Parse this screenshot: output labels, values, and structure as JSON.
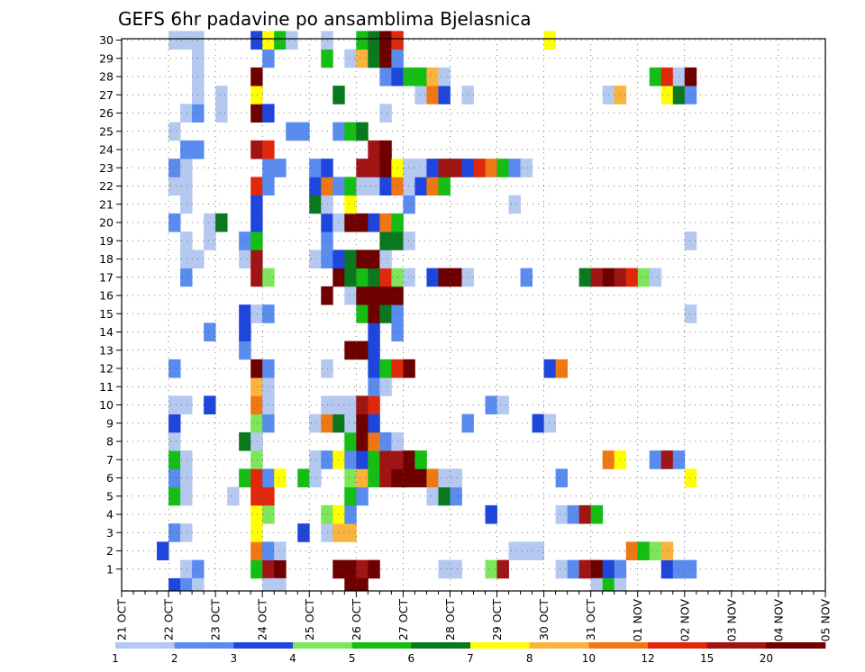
{
  "chart_data": {
    "type": "heatmap",
    "title": "GEFS 6hr padavine po ansamblima Bjelasnica",
    "xlabel": "",
    "ylabel": "",
    "y_categories": [
      "1",
      "2",
      "3",
      "4",
      "5",
      "6",
      "7",
      "8",
      "9",
      "10",
      "11",
      "12",
      "13",
      "14",
      "15",
      "16",
      "17",
      "18",
      "19",
      "20",
      "21",
      "22",
      "23",
      "24",
      "25",
      "26",
      "27",
      "28",
      "29",
      "30"
    ],
    "x_categories": [
      "21 OCT",
      "22 OCT",
      "23 OCT",
      "24 OCT",
      "25 OCT",
      "26 OCT",
      "27 OCT",
      "28 OCT",
      "29 OCT",
      "30 OCT",
      "31 OCT",
      "01 NOV",
      "02 NOV",
      "03 NOV",
      "04 NOV",
      "05 NOV"
    ],
    "steps_per_day": 4,
    "total_steps": 60,
    "legend": {
      "labels": [
        "1",
        "2",
        "3",
        "4",
        "5",
        "6",
        "7",
        "8",
        "10",
        "12",
        "15",
        "20"
      ],
      "colors": [
        "#b4c8f0",
        "#5a8cf0",
        "#1e46dc",
        "#7de65a",
        "#14be14",
        "#0a781e",
        "#ffff00",
        "#fab43c",
        "#f07814",
        "#e1280a",
        "#a01414",
        "#6e0000"
      ]
    },
    "cells": [
      [
        1,
        5,
        0
      ],
      [
        1,
        6,
        1
      ],
      [
        1,
        11,
        4
      ],
      [
        1,
        12,
        10
      ],
      [
        1,
        13,
        11
      ],
      [
        1,
        18,
        11
      ],
      [
        1,
        19,
        11
      ],
      [
        1,
        20,
        10
      ],
      [
        1,
        21,
        11
      ],
      [
        1,
        27,
        0
      ],
      [
        1,
        28,
        0
      ],
      [
        1,
        31,
        3
      ],
      [
        1,
        32,
        10
      ],
      [
        1,
        37,
        0
      ],
      [
        1,
        38,
        1
      ],
      [
        1,
        39,
        10
      ],
      [
        1,
        40,
        11
      ],
      [
        1,
        41,
        2
      ],
      [
        1,
        42,
        1
      ],
      [
        1,
        46,
        2
      ],
      [
        1,
        47,
        1
      ],
      [
        1,
        48,
        1
      ],
      [
        2,
        3,
        2
      ],
      [
        2,
        11,
        8
      ],
      [
        2,
        12,
        1
      ],
      [
        2,
        13,
        0
      ],
      [
        2,
        33,
        0
      ],
      [
        2,
        34,
        0
      ],
      [
        2,
        35,
        0
      ],
      [
        2,
        43,
        8
      ],
      [
        2,
        44,
        4
      ],
      [
        2,
        45,
        3
      ],
      [
        2,
        46,
        7
      ],
      [
        3,
        4,
        1
      ],
      [
        3,
        5,
        0
      ],
      [
        3,
        11,
        6
      ],
      [
        3,
        15,
        2
      ],
      [
        3,
        17,
        0
      ],
      [
        3,
        18,
        7
      ],
      [
        3,
        19,
        7
      ],
      [
        4,
        11,
        6
      ],
      [
        4,
        12,
        3
      ],
      [
        4,
        17,
        3
      ],
      [
        4,
        18,
        6
      ],
      [
        4,
        19,
        1
      ],
      [
        4,
        31,
        2
      ],
      [
        4,
        37,
        0
      ],
      [
        4,
        38,
        1
      ],
      [
        4,
        39,
        10
      ],
      [
        4,
        40,
        4
      ],
      [
        5,
        4,
        4
      ],
      [
        5,
        5,
        0
      ],
      [
        5,
        9,
        0
      ],
      [
        5,
        11,
        9
      ],
      [
        5,
        12,
        9
      ],
      [
        5,
        19,
        4
      ],
      [
        5,
        20,
        1
      ],
      [
        5,
        26,
        0
      ],
      [
        5,
        27,
        5
      ],
      [
        5,
        28,
        1
      ],
      [
        6,
        4,
        1
      ],
      [
        6,
        5,
        0
      ],
      [
        6,
        10,
        4
      ],
      [
        6,
        11,
        9
      ],
      [
        6,
        12,
        1
      ],
      [
        6,
        13,
        6
      ],
      [
        6,
        15,
        4
      ],
      [
        6,
        16,
        0
      ],
      [
        6,
        19,
        3
      ],
      [
        6,
        20,
        7
      ],
      [
        6,
        21,
        4
      ],
      [
        6,
        22,
        10
      ],
      [
        6,
        23,
        11
      ],
      [
        6,
        24,
        11
      ],
      [
        6,
        25,
        11
      ],
      [
        6,
        26,
        8
      ],
      [
        6,
        27,
        0
      ],
      [
        6,
        28,
        0
      ],
      [
        6,
        37,
        1
      ],
      [
        6,
        48,
        6
      ],
      [
        7,
        4,
        4
      ],
      [
        7,
        5,
        0
      ],
      [
        7,
        11,
        3
      ],
      [
        7,
        16,
        0
      ],
      [
        7,
        17,
        1
      ],
      [
        7,
        18,
        6
      ],
      [
        7,
        19,
        1
      ],
      [
        7,
        20,
        2
      ],
      [
        7,
        21,
        4
      ],
      [
        7,
        22,
        10
      ],
      [
        7,
        23,
        10
      ],
      [
        7,
        24,
        11
      ],
      [
        7,
        25,
        4
      ],
      [
        7,
        41,
        8
      ],
      [
        7,
        42,
        6
      ],
      [
        7,
        45,
        1
      ],
      [
        7,
        46,
        10
      ],
      [
        7,
        47,
        1
      ],
      [
        8,
        4,
        0
      ],
      [
        8,
        10,
        5
      ],
      [
        8,
        11,
        0
      ],
      [
        8,
        19,
        4
      ],
      [
        8,
        20,
        11
      ],
      [
        8,
        21,
        8
      ],
      [
        8,
        22,
        1
      ],
      [
        8,
        23,
        0
      ],
      [
        9,
        4,
        2
      ],
      [
        9,
        11,
        3
      ],
      [
        9,
        12,
        1
      ],
      [
        9,
        16,
        0
      ],
      [
        9,
        17,
        8
      ],
      [
        9,
        18,
        5
      ],
      [
        9,
        19,
        0
      ],
      [
        9,
        20,
        11
      ],
      [
        9,
        21,
        2
      ],
      [
        9,
        29,
        1
      ],
      [
        9,
        35,
        2
      ],
      [
        9,
        36,
        0
      ],
      [
        10,
        4,
        0
      ],
      [
        10,
        5,
        0
      ],
      [
        10,
        7,
        2
      ],
      [
        10,
        11,
        8
      ],
      [
        10,
        12,
        0
      ],
      [
        10,
        17,
        0
      ],
      [
        10,
        18,
        0
      ],
      [
        10,
        19,
        0
      ],
      [
        10,
        20,
        10
      ],
      [
        10,
        21,
        9
      ],
      [
        10,
        31,
        1
      ],
      [
        10,
        32,
        0
      ],
      [
        11,
        11,
        7
      ],
      [
        11,
        12,
        0
      ],
      [
        11,
        21,
        1
      ],
      [
        11,
        22,
        0
      ],
      [
        12,
        4,
        1
      ],
      [
        12,
        11,
        11
      ],
      [
        12,
        12,
        1
      ],
      [
        12,
        17,
        0
      ],
      [
        12,
        21,
        2
      ],
      [
        12,
        22,
        4
      ],
      [
        12,
        23,
        9
      ],
      [
        12,
        24,
        11
      ],
      [
        12,
        36,
        2
      ],
      [
        12,
        37,
        8
      ],
      [
        13,
        10,
        1
      ],
      [
        13,
        19,
        11
      ],
      [
        13,
        20,
        11
      ],
      [
        13,
        21,
        2
      ],
      [
        14,
        7,
        1
      ],
      [
        14,
        10,
        2
      ],
      [
        14,
        21,
        2
      ],
      [
        14,
        23,
        1
      ],
      [
        15,
        10,
        2
      ],
      [
        15,
        11,
        0
      ],
      [
        15,
        12,
        1
      ],
      [
        15,
        20,
        4
      ],
      [
        15,
        21,
        11
      ],
      [
        15,
        22,
        5
      ],
      [
        15,
        23,
        1
      ],
      [
        15,
        48,
        0
      ],
      [
        16,
        17,
        11
      ],
      [
        16,
        19,
        0
      ],
      [
        16,
        20,
        11
      ],
      [
        16,
        21,
        11
      ],
      [
        16,
        22,
        11
      ],
      [
        16,
        23,
        11
      ],
      [
        17,
        5,
        1
      ],
      [
        17,
        11,
        10
      ],
      [
        17,
        12,
        3
      ],
      [
        17,
        18,
        11
      ],
      [
        17,
        19,
        5
      ],
      [
        17,
        20,
        4
      ],
      [
        17,
        21,
        5
      ],
      [
        17,
        22,
        9
      ],
      [
        17,
        23,
        3
      ],
      [
        17,
        24,
        0
      ],
      [
        17,
        26,
        2
      ],
      [
        17,
        27,
        11
      ],
      [
        17,
        28,
        11
      ],
      [
        17,
        29,
        0
      ],
      [
        17,
        34,
        1
      ],
      [
        17,
        39,
        5
      ],
      [
        17,
        40,
        10
      ],
      [
        17,
        41,
        11
      ],
      [
        17,
        42,
        10
      ],
      [
        17,
        43,
        9
      ],
      [
        17,
        44,
        3
      ],
      [
        17,
        45,
        0
      ],
      [
        18,
        5,
        0
      ],
      [
        18,
        6,
        0
      ],
      [
        18,
        10,
        0
      ],
      [
        18,
        11,
        10
      ],
      [
        18,
        16,
        0
      ],
      [
        18,
        17,
        1
      ],
      [
        18,
        18,
        2
      ],
      [
        18,
        19,
        5
      ],
      [
        18,
        20,
        11
      ],
      [
        18,
        21,
        11
      ],
      [
        18,
        22,
        0
      ],
      [
        19,
        5,
        0
      ],
      [
        19,
        7,
        0
      ],
      [
        19,
        10,
        1
      ],
      [
        19,
        11,
        4
      ],
      [
        19,
        17,
        1
      ],
      [
        19,
        22,
        5
      ],
      [
        19,
        23,
        5
      ],
      [
        19,
        24,
        0
      ],
      [
        19,
        48,
        0
      ],
      [
        20,
        4,
        1
      ],
      [
        20,
        7,
        0
      ],
      [
        20,
        8,
        5
      ],
      [
        20,
        11,
        2
      ],
      [
        20,
        17,
        2
      ],
      [
        20,
        18,
        0
      ],
      [
        20,
        19,
        11
      ],
      [
        20,
        20,
        11
      ],
      [
        20,
        21,
        2
      ],
      [
        20,
        22,
        8
      ],
      [
        20,
        23,
        4
      ],
      [
        21,
        5,
        0
      ],
      [
        21,
        11,
        2
      ],
      [
        21,
        16,
        5
      ],
      [
        21,
        17,
        0
      ],
      [
        21,
        19,
        6
      ],
      [
        21,
        24,
        1
      ],
      [
        21,
        33,
        0
      ],
      [
        22,
        4,
        0
      ],
      [
        22,
        5,
        0
      ],
      [
        22,
        11,
        9
      ],
      [
        22,
        12,
        1
      ],
      [
        22,
        16,
        2
      ],
      [
        22,
        17,
        8
      ],
      [
        22,
        18,
        1
      ],
      [
        22,
        19,
        4
      ],
      [
        22,
        20,
        0
      ],
      [
        22,
        21,
        0
      ],
      [
        22,
        22,
        2
      ],
      [
        22,
        23,
        8
      ],
      [
        22,
        24,
        0
      ],
      [
        22,
        25,
        2
      ],
      [
        22,
        26,
        8
      ],
      [
        22,
        27,
        4
      ],
      [
        23,
        4,
        1
      ],
      [
        23,
        5,
        0
      ],
      [
        23,
        12,
        1
      ],
      [
        23,
        13,
        1
      ],
      [
        23,
        16,
        1
      ],
      [
        23,
        17,
        2
      ],
      [
        23,
        20,
        10
      ],
      [
        23,
        21,
        10
      ],
      [
        23,
        22,
        11
      ],
      [
        23,
        23,
        6
      ],
      [
        23,
        24,
        0
      ],
      [
        23,
        25,
        0
      ],
      [
        23,
        26,
        2
      ],
      [
        23,
        27,
        10
      ],
      [
        23,
        28,
        10
      ],
      [
        23,
        29,
        2
      ],
      [
        23,
        30,
        9
      ],
      [
        23,
        31,
        8
      ],
      [
        23,
        32,
        4
      ],
      [
        23,
        33,
        1
      ],
      [
        23,
        34,
        0
      ],
      [
        24,
        5,
        1
      ],
      [
        24,
        6,
        1
      ],
      [
        24,
        11,
        10
      ],
      [
        24,
        12,
        9
      ],
      [
        24,
        21,
        10
      ],
      [
        24,
        22,
        11
      ],
      [
        25,
        4,
        0
      ],
      [
        25,
        14,
        1
      ],
      [
        25,
        15,
        1
      ],
      [
        25,
        18,
        1
      ],
      [
        25,
        19,
        4
      ],
      [
        25,
        20,
        5
      ],
      [
        26,
        5,
        0
      ],
      [
        26,
        6,
        1
      ],
      [
        26,
        8,
        0
      ],
      [
        26,
        11,
        11
      ],
      [
        26,
        12,
        2
      ],
      [
        26,
        22,
        0
      ],
      [
        27,
        6,
        0
      ],
      [
        27,
        8,
        0
      ],
      [
        27,
        11,
        6
      ],
      [
        27,
        18,
        5
      ],
      [
        27,
        25,
        0
      ],
      [
        27,
        26,
        8
      ],
      [
        27,
        27,
        2
      ],
      [
        27,
        29,
        0
      ],
      [
        27,
        41,
        0
      ],
      [
        27,
        42,
        7
      ],
      [
        27,
        46,
        6
      ],
      [
        27,
        47,
        5
      ],
      [
        27,
        48,
        1
      ],
      [
        28,
        6,
        0
      ],
      [
        28,
        11,
        11
      ],
      [
        28,
        22,
        1
      ],
      [
        28,
        23,
        2
      ],
      [
        28,
        24,
        4
      ],
      [
        28,
        25,
        4
      ],
      [
        28,
        26,
        7
      ],
      [
        28,
        27,
        0
      ],
      [
        28,
        45,
        4
      ],
      [
        28,
        46,
        9
      ],
      [
        28,
        47,
        0
      ],
      [
        28,
        48,
        11
      ],
      [
        29,
        6,
        0
      ],
      [
        29,
        12,
        1
      ],
      [
        29,
        17,
        4
      ],
      [
        29,
        19,
        0
      ],
      [
        29,
        20,
        7
      ],
      [
        29,
        21,
        5
      ],
      [
        29,
        22,
        11
      ],
      [
        29,
        23,
        1
      ],
      [
        30,
        4,
        0
      ],
      [
        30,
        5,
        0
      ],
      [
        30,
        6,
        0
      ],
      [
        30,
        11,
        2
      ],
      [
        30,
        12,
        6
      ],
      [
        30,
        13,
        4
      ],
      [
        30,
        14,
        0
      ],
      [
        30,
        17,
        0
      ],
      [
        30,
        20,
        4
      ],
      [
        30,
        21,
        5
      ],
      [
        30,
        22,
        11
      ],
      [
        30,
        23,
        9
      ],
      [
        30,
        36,
        6
      ]
    ],
    "bottom_row_cells": [
      [
        4,
        2
      ],
      [
        5,
        1
      ],
      [
        6,
        0
      ],
      [
        12,
        0
      ],
      [
        13,
        0
      ],
      [
        19,
        11
      ],
      [
        20,
        11
      ],
      [
        40,
        0
      ],
      [
        41,
        4
      ],
      [
        42,
        0
      ]
    ]
  }
}
